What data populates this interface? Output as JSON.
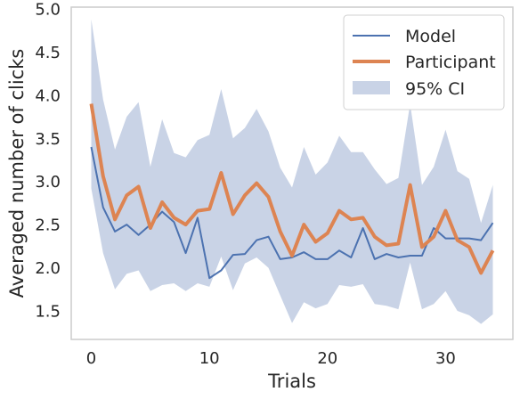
{
  "chart_data": {
    "type": "line",
    "title": "",
    "xlabel": "Trials",
    "ylabel": "Averaged number of clicks",
    "xlim": [
      -1.7,
      35.7
    ],
    "ylim": [
      1.17,
      5.02
    ],
    "xticks": [
      0,
      10,
      20,
      30
    ],
    "xtick_labels": [
      "0",
      "10",
      "20",
      "30"
    ],
    "yticks": [
      1.5,
      2.0,
      2.5,
      3.0,
      3.5,
      4.0,
      4.5,
      5.0
    ],
    "ytick_labels": [
      "1.5",
      "2.0",
      "2.5",
      "3.0",
      "3.5",
      "4.0",
      "4.5",
      "5.0"
    ],
    "grid": false,
    "legend_position": "top-right",
    "x": [
      0,
      1,
      2,
      3,
      4,
      5,
      6,
      7,
      8,
      9,
      10,
      11,
      12,
      13,
      14,
      15,
      16,
      17,
      18,
      19,
      20,
      21,
      22,
      23,
      24,
      25,
      26,
      27,
      28,
      29,
      30,
      31,
      32,
      33,
      34
    ],
    "series": [
      {
        "name": "Model",
        "color": "#4c72b0",
        "values": [
          3.4,
          2.7,
          2.42,
          2.5,
          2.38,
          2.5,
          2.65,
          2.53,
          2.17,
          2.58,
          1.88,
          1.97,
          2.15,
          2.16,
          2.32,
          2.36,
          2.1,
          2.12,
          2.18,
          2.1,
          2.1,
          2.2,
          2.12,
          2.46,
          2.1,
          2.16,
          2.12,
          2.14,
          2.14,
          2.46,
          2.34,
          2.34,
          2.34,
          2.32,
          2.52
        ]
      },
      {
        "name": "Participant",
        "color": "#dd8452",
        "values": [
          3.9,
          3.06,
          2.56,
          2.84,
          2.94,
          2.46,
          2.76,
          2.58,
          2.5,
          2.66,
          2.68,
          3.1,
          2.62,
          2.84,
          2.98,
          2.82,
          2.42,
          2.14,
          2.5,
          2.3,
          2.4,
          2.66,
          2.56,
          2.58,
          2.36,
          2.26,
          2.28,
          2.96,
          2.24,
          2.36,
          2.66,
          2.32,
          2.24,
          1.94,
          2.2
        ]
      },
      {
        "name": "95% CI",
        "color": "#c9d3e6",
        "upper": [
          4.88,
          3.95,
          3.37,
          3.75,
          3.92,
          3.17,
          3.72,
          3.33,
          3.28,
          3.48,
          3.54,
          4.07,
          3.5,
          3.62,
          3.84,
          3.58,
          3.16,
          2.93,
          3.4,
          3.08,
          3.22,
          3.53,
          3.34,
          3.34,
          3.14,
          2.97,
          3.04,
          3.9,
          2.96,
          3.17,
          3.6,
          3.12,
          3.03,
          2.52,
          2.96
        ],
        "lower": [
          2.92,
          2.17,
          1.75,
          1.93,
          1.97,
          1.73,
          1.8,
          1.82,
          1.73,
          1.82,
          1.78,
          2.13,
          1.74,
          2.05,
          2.12,
          2.0,
          1.68,
          1.36,
          1.6,
          1.53,
          1.58,
          1.8,
          1.78,
          1.81,
          1.58,
          1.56,
          1.52,
          2.06,
          1.52,
          1.58,
          1.73,
          1.5,
          1.45,
          1.35,
          1.46
        ]
      }
    ]
  }
}
